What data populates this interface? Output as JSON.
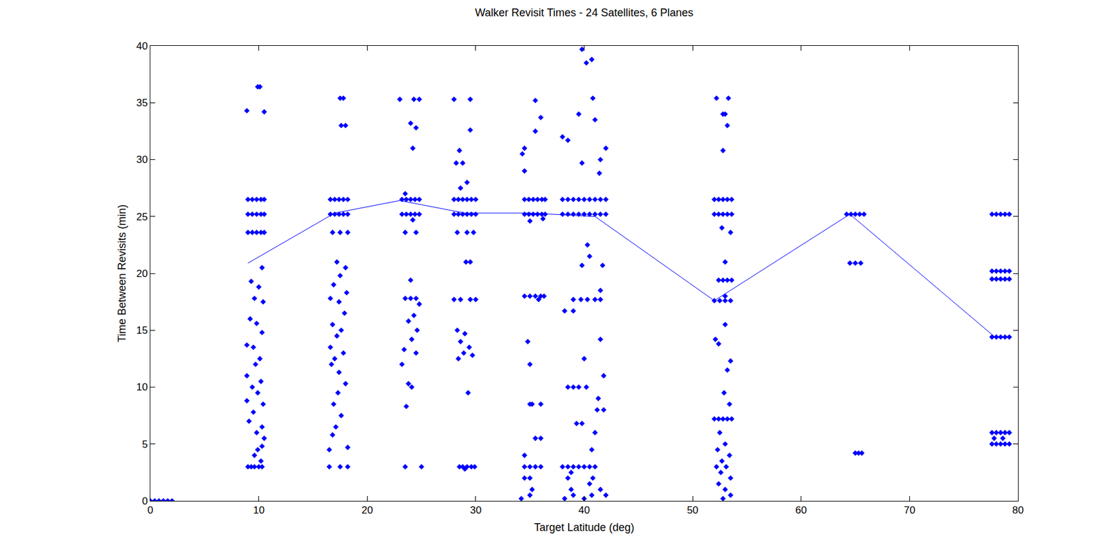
{
  "chart_data": {
    "type": "scatter",
    "title": "Walker Revisit Times - 24 Satellites, 6 Planes",
    "x_label": "Target Latitude (deg)",
    "y_label": "Time Between Revisits (min)",
    "xlim": [
      0,
      80
    ],
    "xticks": [
      0,
      10,
      20,
      30,
      40,
      50,
      60,
      70,
      80
    ],
    "ylim": [
      0,
      40
    ],
    "yticks": [
      0,
      5,
      10,
      15,
      20,
      25,
      30,
      35,
      40
    ],
    "grid": false,
    "color": "#0000ff",
    "marker": "diamond",
    "series": [
      {
        "type": "scatter",
        "x": [
          0,
          0.4,
          0.8,
          1.2,
          1.6,
          2.0
        ],
        "values": [
          0,
          0,
          0,
          0,
          0,
          0
        ]
      },
      {
        "type": "scatter",
        "x": [
          8.9,
          9.9,
          10.1,
          10.5,
          9.0,
          9.4,
          9.8,
          10.2,
          10.5,
          9.0,
          9.4,
          9.8,
          10.2,
          10.5,
          9.0,
          9.4,
          9.8,
          10.2,
          10.5,
          10.3,
          9.3,
          10.0,
          9.6,
          10.4,
          9.2,
          9.8,
          10.3,
          8.9,
          9.5,
          10.1,
          9.7,
          8.9,
          10.2,
          9.4,
          9.9,
          8.9,
          10.4,
          9.5,
          9.1,
          10.3,
          9.8,
          10.5,
          10.3,
          9.9,
          9.6,
          10.2,
          9.0,
          9.3,
          9.6,
          10.0,
          10.3
        ],
        "values": [
          34.3,
          36.4,
          36.4,
          34.2,
          26.5,
          26.5,
          26.5,
          26.5,
          26.5,
          25.2,
          25.2,
          25.2,
          25.2,
          25.2,
          23.6,
          23.6,
          23.6,
          23.6,
          23.6,
          20.5,
          19.3,
          18.8,
          17.8,
          17.5,
          16.0,
          15.6,
          14.8,
          13.7,
          13.5,
          12.5,
          12.0,
          11.0,
          10.5,
          10.0,
          9.5,
          8.8,
          8.5,
          7.8,
          7.0,
          6.5,
          6.0,
          5.5,
          4.8,
          4.5,
          4.0,
          3.5,
          3.0,
          3.0,
          3.0,
          3.0,
          3.0
        ]
      },
      {
        "type": "scatter",
        "x": [
          17.5,
          17.8,
          17.6,
          18.0,
          16.6,
          17.0,
          17.4,
          17.8,
          18.2,
          16.6,
          17.0,
          17.4,
          17.8,
          18.2,
          16.8,
          17.5,
          18.2,
          17.2,
          18.0,
          17.5,
          16.9,
          18.1,
          16.6,
          17.4,
          17.9,
          16.8,
          17.6,
          17.2,
          16.6,
          17.8,
          17.0,
          16.7,
          17.4,
          18.0,
          17.3,
          16.9,
          17.6,
          17.1,
          16.8,
          18.2,
          16.5,
          16.5,
          17.5,
          18.2
        ],
        "values": [
          35.4,
          35.4,
          33.0,
          33.0,
          26.5,
          26.5,
          26.5,
          26.5,
          26.5,
          25.2,
          25.2,
          25.2,
          25.2,
          25.2,
          23.6,
          23.6,
          23.6,
          21.0,
          20.5,
          19.8,
          19.0,
          18.3,
          17.8,
          17.5,
          16.5,
          15.5,
          15.0,
          14.5,
          13.5,
          13.0,
          12.5,
          12.0,
          11.3,
          10.3,
          9.5,
          8.5,
          7.5,
          6.5,
          5.8,
          4.7,
          4.5,
          3.0,
          3.0,
          3.0
        ]
      },
      {
        "type": "scatter",
        "x": [
          23.0,
          24.3,
          24.8,
          24.0,
          24.5,
          24.2,
          23.5,
          23.2,
          23.6,
          24.0,
          24.4,
          24.8,
          23.2,
          23.6,
          24.0,
          24.4,
          24.8,
          24.2,
          23.5,
          24.5,
          24.0,
          23.5,
          24.0,
          24.5,
          24.8,
          24.3,
          23.8,
          24.6,
          24.1,
          23.4,
          24.5,
          23.2,
          23.8,
          24.1,
          23.6,
          23.5,
          25.0
        ],
        "values": [
          35.3,
          35.3,
          35.3,
          33.2,
          32.8,
          31.0,
          27.0,
          26.5,
          26.5,
          26.5,
          26.5,
          26.5,
          25.2,
          25.2,
          25.2,
          25.2,
          25.2,
          24.7,
          23.6,
          23.6,
          19.4,
          17.8,
          17.8,
          17.8,
          17.3,
          16.3,
          15.8,
          15.0,
          14.2,
          13.3,
          13.0,
          12.0,
          10.3,
          10.0,
          8.3,
          3.0,
          3.0
        ]
      },
      {
        "type": "scatter",
        "x": [
          28.0,
          29.5,
          29.5,
          28.5,
          28.2,
          28.8,
          29.2,
          28.6,
          28.0,
          28.4,
          28.8,
          29.2,
          29.6,
          30.0,
          28.0,
          28.4,
          28.8,
          29.2,
          29.6,
          30.0,
          28.3,
          29.2,
          29.8,
          29.1,
          29.5,
          28.0,
          28.6,
          29.5,
          30.0,
          28.3,
          29.0,
          28.6,
          29.4,
          28.9,
          29.7,
          28.4,
          29.3,
          28.5,
          28.8,
          29.2,
          29.6,
          29.9,
          29.0
        ],
        "values": [
          35.3,
          35.3,
          32.6,
          30.8,
          29.7,
          29.7,
          28.0,
          27.5,
          26.5,
          26.5,
          26.5,
          26.5,
          26.5,
          26.5,
          25.2,
          25.2,
          25.2,
          25.2,
          25.2,
          25.2,
          23.6,
          23.6,
          23.6,
          21.0,
          21.0,
          17.7,
          17.7,
          17.7,
          17.7,
          15.0,
          14.7,
          14.0,
          13.5,
          13.0,
          12.8,
          12.5,
          9.5,
          3.0,
          3.0,
          3.0,
          3.0,
          3.0,
          2.8
        ]
      },
      {
        "type": "scatter",
        "x": [
          35.5,
          36.0,
          35.5,
          34.5,
          34.3,
          34.5,
          34.5,
          34.9,
          35.3,
          35.7,
          36.1,
          36.4,
          34.5,
          34.9,
          35.3,
          35.7,
          36.1,
          36.4,
          35.0,
          36.2,
          34.5,
          35.0,
          35.5,
          36.0,
          36.3,
          35.8,
          34.8,
          35.0,
          35.0,
          35.2,
          36.0,
          35.5,
          36.0,
          34.5,
          34.5,
          35.0,
          35.5,
          36.0,
          34.5,
          35.0,
          35.2,
          35.0,
          34.2
        ],
        "values": [
          35.2,
          33.7,
          32.5,
          31.0,
          30.5,
          29.0,
          26.5,
          26.5,
          26.5,
          26.5,
          26.5,
          26.5,
          25.2,
          25.2,
          25.2,
          25.2,
          25.2,
          25.2,
          24.6,
          24.8,
          18.0,
          18.0,
          18.0,
          18.0,
          18.0,
          17.7,
          14.0,
          12.0,
          8.5,
          8.5,
          8.5,
          5.5,
          5.5,
          4.0,
          3.0,
          3.0,
          3.0,
          3.0,
          2.0,
          2.0,
          1.0,
          0.5,
          0.2
        ]
      },
      {
        "type": "scatter",
        "x": [
          39.8,
          40.2,
          40.7,
          40.8,
          39.5,
          41.0,
          38.0,
          38.5,
          42.0,
          41.5,
          39.8,
          41.4,
          38.0,
          38.5,
          39.0,
          39.5,
          40.0,
          40.5,
          41.0,
          41.5,
          42.0,
          38.0,
          38.5,
          39.0,
          39.5,
          40.0,
          40.5,
          41.0,
          41.5,
          42.0,
          40.3,
          40.5,
          39.8,
          41.7,
          41.5,
          39.0,
          39.7,
          40.3,
          41.0,
          41.5,
          38.2,
          39.0,
          41.5,
          40.0,
          41.8,
          38.5,
          39.0,
          39.5,
          40.2,
          41.3,
          41.2,
          41.8,
          39.3,
          39.8,
          41.0,
          40.7,
          38.0,
          38.5,
          39.0,
          39.5,
          40.0,
          40.5,
          41.0,
          38.8,
          38.5,
          40.8,
          40.5,
          38.8,
          41.5,
          39.0,
          40.7,
          42.0,
          38.2,
          40.0
        ],
        "values": [
          39.7,
          38.5,
          38.8,
          35.4,
          34.0,
          33.5,
          32.0,
          31.7,
          31.0,
          30.0,
          29.7,
          28.8,
          26.5,
          26.5,
          26.5,
          26.5,
          26.5,
          26.5,
          26.5,
          26.5,
          26.5,
          25.2,
          25.2,
          25.2,
          25.2,
          25.2,
          25.2,
          25.2,
          25.2,
          25.2,
          22.5,
          21.5,
          20.7,
          20.7,
          18.5,
          17.7,
          17.7,
          17.7,
          17.7,
          17.7,
          16.7,
          16.7,
          14.2,
          12.5,
          11.0,
          10.0,
          10.0,
          10.0,
          10.0,
          9.0,
          8.0,
          8.0,
          6.8,
          6.8,
          6.0,
          4.5,
          3.0,
          3.0,
          3.0,
          3.0,
          3.0,
          3.0,
          3.0,
          2.5,
          2.0,
          2.0,
          1.5,
          1.0,
          1.0,
          0.5,
          0.5,
          0.5,
          0.2,
          0.2
        ]
      },
      {
        "type": "scatter",
        "x": [
          52.2,
          53.3,
          52.8,
          53.0,
          53.2,
          52.8,
          52.0,
          52.4,
          52.8,
          53.2,
          53.6,
          52.0,
          52.4,
          52.8,
          53.2,
          53.6,
          52.7,
          53.5,
          53.0,
          52.4,
          52.8,
          53.2,
          53.6,
          53.0,
          52.0,
          52.5,
          53.0,
          53.5,
          53.0,
          52.1,
          52.4,
          53.5,
          53.2,
          52.9,
          53.4,
          52.0,
          52.4,
          52.8,
          53.2,
          53.6,
          52.5,
          53.0,
          52.3,
          53.4,
          52.7,
          52.2,
          53.1,
          52.6,
          53.5,
          52.4,
          53.0,
          53.5,
          52.8
        ],
        "values": [
          35.4,
          35.4,
          34.0,
          34.0,
          33.0,
          30.8,
          26.5,
          26.5,
          26.5,
          26.5,
          26.5,
          25.2,
          25.2,
          25.2,
          25.2,
          25.2,
          24.0,
          23.6,
          21.0,
          19.4,
          19.4,
          19.4,
          19.4,
          18.0,
          17.6,
          17.6,
          17.6,
          17.6,
          15.5,
          14.2,
          13.8,
          12.3,
          11.5,
          9.5,
          8.5,
          7.2,
          7.2,
          7.2,
          7.2,
          7.2,
          6.0,
          5.0,
          4.5,
          4.0,
          3.5,
          3.0,
          3.0,
          2.5,
          2.0,
          1.5,
          1.0,
          0.5,
          0.2
        ]
      },
      {
        "type": "scatter",
        "x": [
          64.2,
          64.6,
          65.0,
          65.4,
          65.8,
          64.5,
          65.0,
          65.5,
          65.0,
          65.3,
          65.6
        ],
        "values": [
          25.2,
          25.2,
          25.2,
          25.2,
          25.2,
          20.9,
          20.9,
          20.9,
          4.2,
          4.2,
          4.2
        ]
      },
      {
        "type": "scatter",
        "x": [
          77.6,
          78.0,
          78.4,
          78.8,
          79.2,
          77.6,
          78.0,
          78.4,
          78.8,
          79.2,
          77.6,
          78.0,
          78.4,
          78.8,
          79.2,
          77.6,
          78.0,
          78.4,
          78.8,
          79.2,
          77.6,
          78.0,
          78.4,
          78.8,
          79.2,
          77.8,
          78.6,
          77.6,
          78.0,
          78.4,
          78.8,
          79.2
        ],
        "values": [
          25.2,
          25.2,
          25.2,
          25.2,
          25.2,
          20.2,
          20.2,
          20.2,
          20.2,
          20.2,
          19.5,
          19.5,
          19.5,
          19.5,
          19.5,
          14.4,
          14.4,
          14.4,
          14.4,
          14.4,
          6.0,
          6.0,
          6.0,
          6.0,
          6.0,
          5.5,
          5.5,
          5.0,
          5.0,
          5.0,
          5.0,
          5.0
        ]
      },
      {
        "type": "line",
        "x": [
          9,
          17,
          23,
          29,
          35,
          41,
          52,
          64.5,
          78
        ],
        "values": [
          20.9,
          25.3,
          26.4,
          25.3,
          25.3,
          25.0,
          17.6,
          25.2,
          14.3
        ]
      }
    ]
  }
}
